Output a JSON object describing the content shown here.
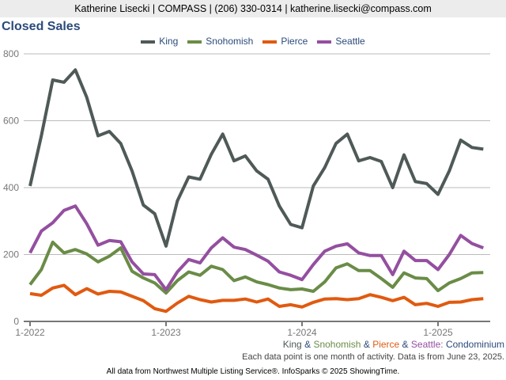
{
  "header": "Katherine Lisecki | COMPASS | (206) 330-0314 | katherine.lisecki@compass.com",
  "chart_data": {
    "type": "line",
    "title": "Closed Sales",
    "x_ticks": [
      "1-2022",
      "1-2023",
      "1-2024",
      "1-2025"
    ],
    "y_ticks": [
      0,
      200,
      400,
      600,
      800
    ],
    "ylim": [
      0,
      800
    ],
    "x_start": "1-2022",
    "x_end": "5-2025",
    "series": [
      {
        "name": "King",
        "color": "#4f5a58",
        "values": [
          405,
          555,
          722,
          715,
          752,
          670,
          555,
          568,
          532,
          450,
          348,
          322,
          225,
          360,
          432,
          425,
          500,
          560,
          480,
          495,
          450,
          425,
          345,
          290,
          280,
          405,
          460,
          532,
          560,
          480,
          490,
          478,
          400,
          498,
          418,
          412,
          380,
          450,
          542,
          520,
          515
        ]
      },
      {
        "name": "Snohomish",
        "color": "#6a8c47",
        "values": [
          110,
          155,
          237,
          205,
          215,
          202,
          178,
          195,
          220,
          150,
          130,
          115,
          85,
          122,
          148,
          138,
          165,
          155,
          122,
          133,
          118,
          110,
          100,
          95,
          97,
          90,
          118,
          160,
          172,
          152,
          152,
          128,
          102,
          145,
          130,
          128,
          92,
          115,
          128,
          145,
          146
        ]
      },
      {
        "name": "Pierce",
        "color": "#e05a10",
        "values": [
          83,
          78,
          100,
          108,
          80,
          98,
          82,
          90,
          88,
          75,
          62,
          38,
          30,
          55,
          75,
          65,
          58,
          63,
          63,
          67,
          58,
          67,
          45,
          50,
          43,
          57,
          67,
          68,
          65,
          68,
          80,
          72,
          62,
          72,
          50,
          54,
          45,
          57,
          58,
          65,
          68
        ]
      },
      {
        "name": "Seattle",
        "color": "#944fa0",
        "values": [
          205,
          270,
          295,
          332,
          345,
          292,
          228,
          242,
          238,
          178,
          142,
          140,
          95,
          148,
          185,
          175,
          220,
          250,
          222,
          215,
          198,
          180,
          148,
          138,
          125,
          170,
          210,
          225,
          232,
          205,
          197,
          197,
          140,
          210,
          182,
          182,
          155,
          200,
          257,
          233,
          220
        ]
      }
    ]
  },
  "subtitle": {
    "parts": [
      "King",
      "&",
      "Snohomish",
      "&",
      "Pierce",
      "&",
      "Seattle:",
      "Condominium"
    ]
  },
  "note": "Each data point is one month of activity. Data is from June 23, 2025.",
  "footer": "All data from Northwest Multiple Listing Service®. InfoSparks © 2025 ShowingTime."
}
